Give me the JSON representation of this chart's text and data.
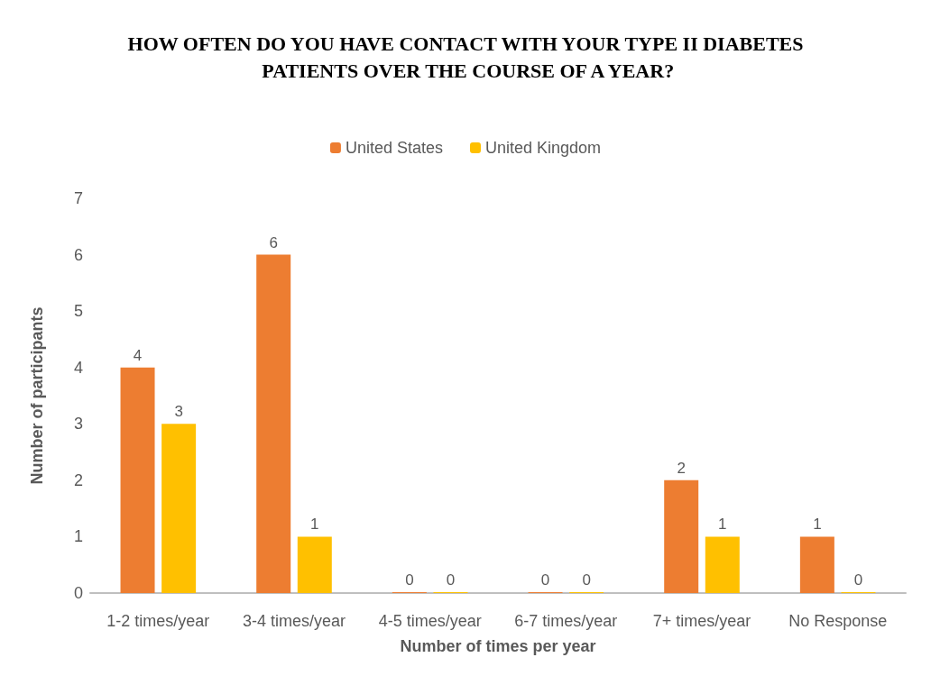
{
  "chart_data": {
    "type": "bar",
    "title": "HOW OFTEN DO YOU HAVE CONTACT WITH YOUR TYPE II DIABETES PATIENTS OVER THE COURSE OF A YEAR?",
    "xlabel": "Number of times per year",
    "ylabel": "Number of participants",
    "categories": [
      "1-2 times/year",
      "3-4 times/year",
      "4-5 times/year",
      "6-7 times/year",
      "7+ times/year",
      "No Response"
    ],
    "series": [
      {
        "name": "United States",
        "color": "#ed7d31",
        "values": [
          4,
          6,
          0,
          0,
          2,
          1
        ]
      },
      {
        "name": "United Kingdom",
        "color": "#ffc000",
        "values": [
          3,
          1,
          0,
          0,
          1,
          0
        ]
      }
    ],
    "ylim": [
      0,
      7
    ],
    "yticks": [
      0,
      1,
      2,
      3,
      4,
      5,
      6,
      7
    ],
    "grid": false,
    "legend": "top",
    "data_labels": true
  }
}
